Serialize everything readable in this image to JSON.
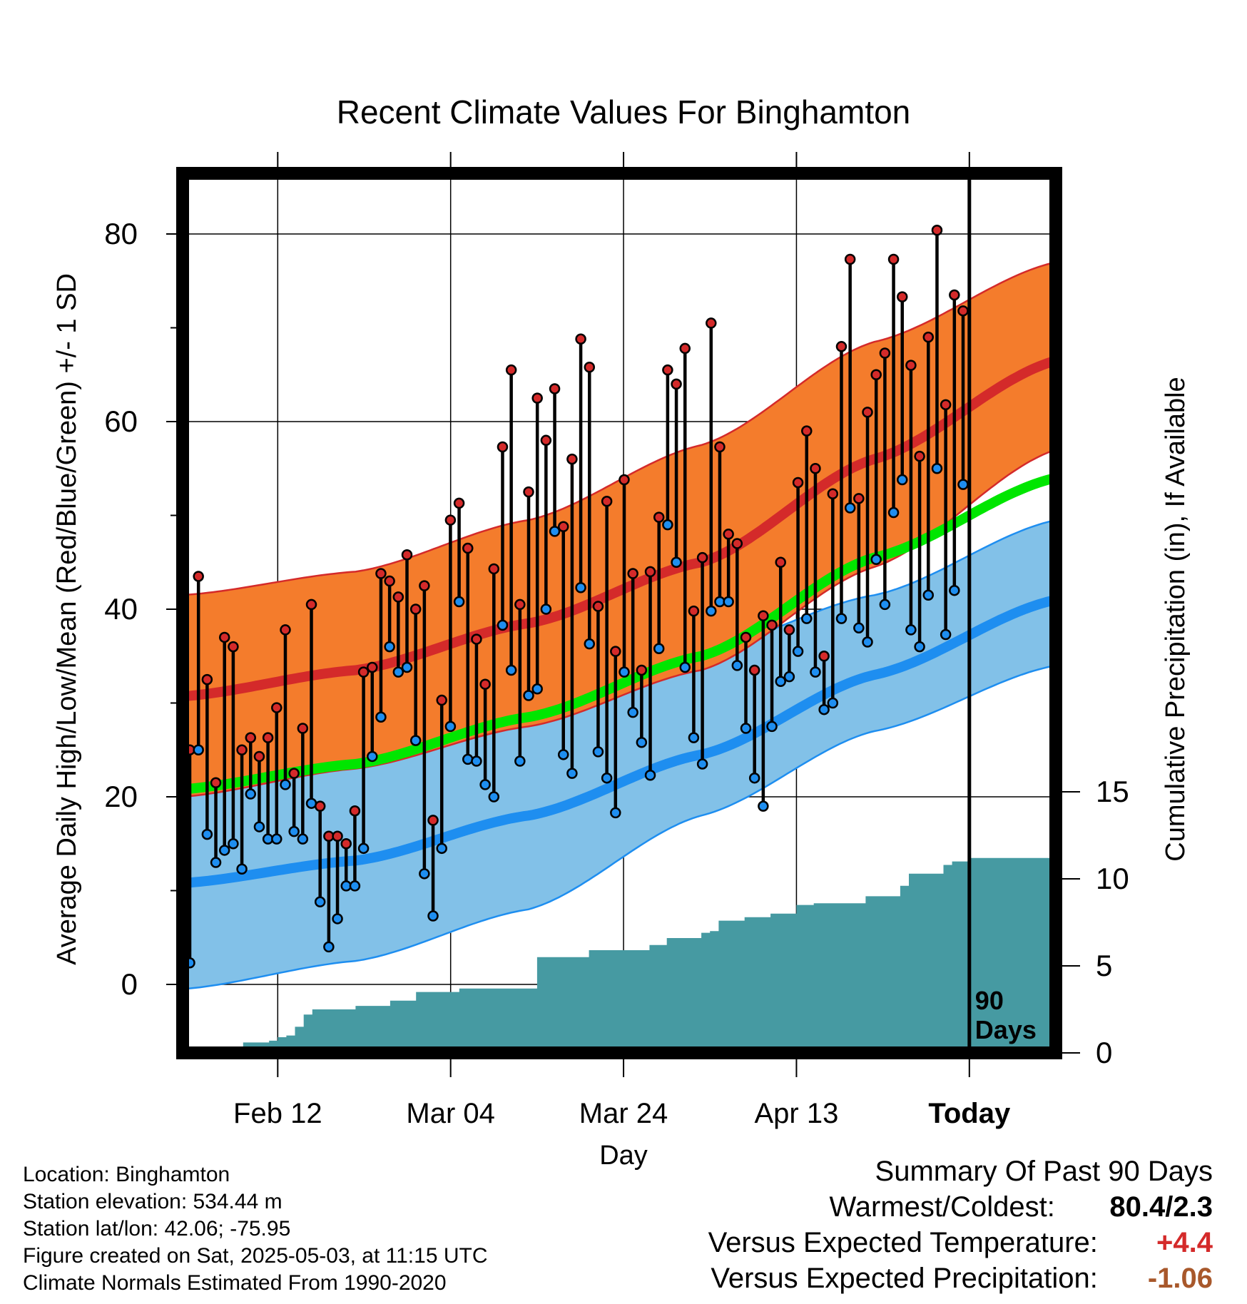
{
  "title": "Recent Climate Values For Binghamton",
  "chart_data": {
    "type": "line",
    "title": "Recent Climate Values For Binghamton",
    "xlabel": "Day",
    "ylabel": "Average Daily High/Low/Mean (Red/Blue/Green) +/- 1 SD",
    "y2label": "Cumulative Precipitation (in), If Available",
    "ylim": [
      -7,
      86
    ],
    "y2lim": [
      0,
      38
    ],
    "x_tick_labels": [
      "Feb 12",
      "Mar 04",
      "Mar 24",
      "Apr 13",
      "Today"
    ],
    "x_tick_days": [
      11,
      31,
      51,
      71,
      91
    ],
    "xlim": [
      0,
      101
    ],
    "y_ticks": [
      0,
      20,
      40,
      60,
      80
    ],
    "y2_ticks": [
      0,
      5,
      10,
      15
    ],
    "grid": true,
    "today_marker_label": [
      "90",
      "Days"
    ],
    "colors": {
      "high": "#d42a2a",
      "high_band": "#f47c2c",
      "mean": "#00e600",
      "low": "#1e8ef0",
      "low_band": "#82c1e8",
      "precip": "#469aa2",
      "frame": "#000000"
    },
    "normal_high": {
      "day": [
        0,
        20,
        40,
        60,
        80,
        101
      ],
      "mean": [
        30.7,
        33.5,
        38.5,
        45.0,
        56.0,
        66.5
      ],
      "plus_sd": [
        41.5,
        44.0,
        49.5,
        57.5,
        68.5,
        77.0
      ],
      "minus_sd": [
        20.0,
        23.0,
        27.5,
        33.5,
        44.5,
        57.0
      ]
    },
    "normal_mean": {
      "day": [
        0,
        20,
        40,
        60,
        80,
        101
      ],
      "values": [
        20.8,
        23.5,
        28.5,
        35.0,
        45.5,
        54.0
      ]
    },
    "normal_low": {
      "day": [
        0,
        20,
        40,
        60,
        80,
        101
      ],
      "mean": [
        10.8,
        13.2,
        18.0,
        24.5,
        33.0,
        41.0
      ],
      "plus_sd": [
        23.2,
        25.0,
        29.5,
        35.5,
        41.5,
        49.5
      ],
      "minus_sd": [
        -0.5,
        2.5,
        8.0,
        18.0,
        27.0,
        34.0
      ]
    },
    "daily_high": [
      25.0,
      43.5,
      32.5,
      21.5,
      37.0,
      36.0,
      25.0,
      26.3,
      24.3,
      26.3,
      29.5,
      37.8,
      22.5,
      27.3,
      40.5,
      19.0,
      15.8,
      15.8,
      15.0,
      18.5,
      33.3,
      33.8,
      43.8,
      43.0,
      41.3,
      45.8,
      40.0,
      42.5,
      17.5,
      30.3,
      49.5,
      51.3,
      46.5,
      36.8,
      32.0,
      44.3,
      57.3,
      65.5,
      40.5,
      52.5,
      62.5,
      58.0,
      63.5,
      48.8,
      56.0,
      68.8,
      65.8,
      40.3,
      51.5,
      35.5,
      53.8,
      43.8,
      33.5,
      44.0,
      49.8,
      65.5,
      64.0,
      67.8,
      39.8,
      45.5,
      70.5,
      57.3,
      48.0,
      47.0,
      37.0,
      33.5,
      39.3,
      38.3,
      45.0,
      37.8,
      53.5,
      59.0,
      55.0,
      35.0,
      52.3,
      68.0,
      77.3,
      51.8,
      61.0,
      65.0,
      67.3,
      77.3,
      73.3,
      66.0,
      56.3,
      69.0,
      80.4,
      61.8,
      73.5,
      71.8
    ],
    "daily_low": [
      2.3,
      25.0,
      16.0,
      13.0,
      14.3,
      15.0,
      12.3,
      20.3,
      16.8,
      15.5,
      15.5,
      21.3,
      16.3,
      15.5,
      19.3,
      8.8,
      4.0,
      7.0,
      10.5,
      10.5,
      14.5,
      24.3,
      28.5,
      36.0,
      33.3,
      33.8,
      26.0,
      11.8,
      7.3,
      14.5,
      27.5,
      40.8,
      24.0,
      23.8,
      21.3,
      20.0,
      38.3,
      33.5,
      23.8,
      30.8,
      31.5,
      40.0,
      48.3,
      24.5,
      22.5,
      42.3,
      36.3,
      24.8,
      22.0,
      18.3,
      33.3,
      29.0,
      25.8,
      22.3,
      35.8,
      49.0,
      45.0,
      33.8,
      26.3,
      23.5,
      39.8,
      40.8,
      40.8,
      34.0,
      27.3,
      22.0,
      19.0,
      27.5,
      32.3,
      32.8,
      35.5,
      39.0,
      33.3,
      29.3,
      30.0,
      39.0,
      50.8,
      38.0,
      36.5,
      45.3,
      40.5,
      50.3,
      53.8,
      37.8,
      36.0,
      41.5,
      55.0,
      37.3,
      42.0,
      53.3
    ],
    "cumulative_precip": {
      "day": [
        6,
        7,
        10,
        11,
        12,
        13,
        14,
        15,
        16,
        20,
        24,
        25,
        26,
        27,
        31,
        32,
        40,
        41,
        42,
        47,
        48,
        54,
        56,
        60,
        61,
        62,
        65,
        66,
        68,
        70,
        71,
        73,
        74,
        79,
        82,
        83,
        84,
        87,
        88,
        89,
        91,
        101
      ],
      "values": [
        0.0,
        0.6,
        0.7,
        0.9,
        1.0,
        1.5,
        2.2,
        2.5,
        2.5,
        2.7,
        3.0,
        3.0,
        3.0,
        3.5,
        3.5,
        3.7,
        3.7,
        5.5,
        5.5,
        5.9,
        5.9,
        6.2,
        6.6,
        6.9,
        7.0,
        7.6,
        7.8,
        7.8,
        8.0,
        8.0,
        8.5,
        8.6,
        8.6,
        9.0,
        9.0,
        9.6,
        10.3,
        10.3,
        10.8,
        11.0,
        11.2,
        11.2
      ]
    }
  },
  "footer": {
    "location": "Location: Binghamton",
    "elevation": "Station elevation: 534.44 m",
    "latlon": "Station lat/lon: 42.06; -75.95",
    "created": "Figure created on Sat, 2025-05-03, at 11:15 UTC",
    "normals": "Climate Normals Estimated From 1990-2020"
  },
  "summary": {
    "heading": "Summary Of Past 90 Days",
    "warmest_coldest_label": "Warmest/Coldest:",
    "warmest_coldest_value": "80.4/2.3",
    "temp_label": "Versus Expected Temperature:",
    "temp_value": "+4.4",
    "temp_color": "#d42a2a",
    "precip_label": "Versus Expected Precipitation:",
    "precip_value": "-1.06",
    "precip_color": "#a8582b"
  }
}
